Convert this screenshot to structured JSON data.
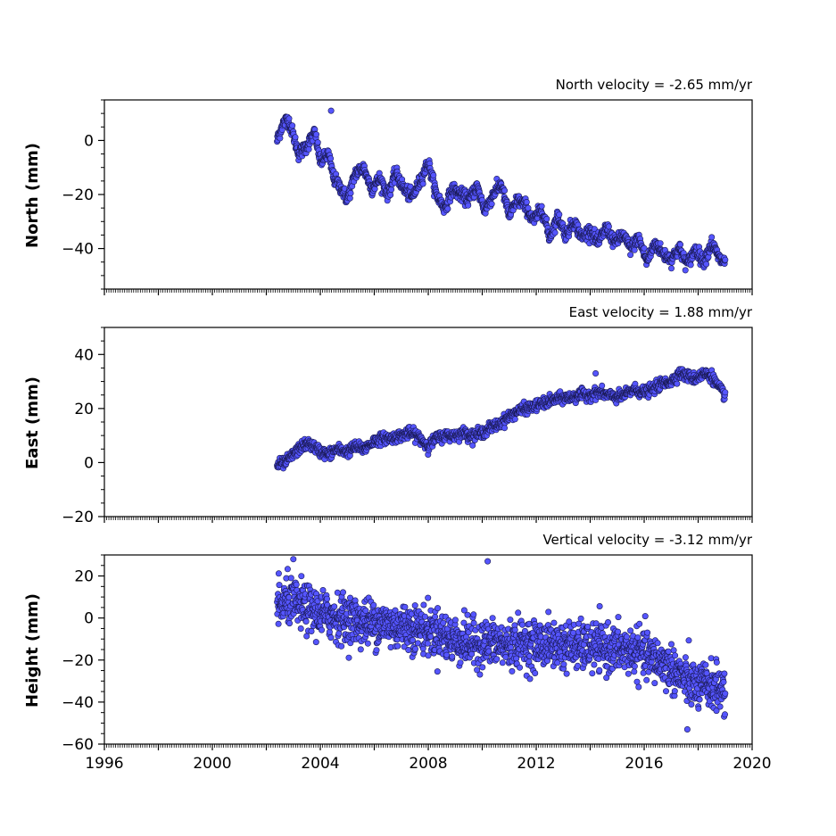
{
  "chart_data": [
    {
      "type": "scatter",
      "title": "North velocity = -2.65 mm/yr",
      "ylabel": "North (mm)",
      "ylim": [
        -55,
        15
      ],
      "yticks": [
        0,
        -20,
        -40
      ],
      "ytick_labels": [
        "0",
        "−20",
        "−40"
      ],
      "xlim": [
        1996,
        2020
      ],
      "series": [
        {
          "x": [
            2002.4,
            2002.6,
            2002.8,
            2003.0,
            2003.2,
            2003.5,
            2003.8,
            2004.0,
            2004.3,
            2004.5,
            2004.8,
            2005.0,
            2005.3,
            2005.6,
            2005.9,
            2006.2,
            2006.5,
            2006.8,
            2007.1,
            2007.4,
            2007.7,
            2008.0,
            2008.3,
            2008.6,
            2008.9,
            2009.2,
            2009.5,
            2009.8,
            2010.1,
            2010.4,
            2010.7,
            2011.0,
            2011.3,
            2011.6,
            2011.9,
            2012.2,
            2012.5,
            2012.8,
            2013.1,
            2013.4,
            2013.7,
            2014.0,
            2014.3,
            2014.6,
            2014.9,
            2015.2,
            2015.5,
            2015.8,
            2016.1,
            2016.4,
            2016.7,
            2017.0,
            2017.3,
            2017.6,
            2017.9,
            2018.2,
            2018.5,
            2018.8,
            2019.0
          ],
          "y": [
            0,
            6,
            8,
            2,
            -5,
            -2,
            3,
            -8,
            -5,
            -14,
            -18,
            -22,
            -12,
            -10,
            -18,
            -14,
            -20,
            -12,
            -18,
            -21,
            -15,
            -8,
            -20,
            -25,
            -18,
            -20,
            -22,
            -17,
            -26,
            -20,
            -16,
            -28,
            -22,
            -24,
            -30,
            -25,
            -36,
            -28,
            -35,
            -30,
            -36,
            -33,
            -38,
            -32,
            -38,
            -35,
            -40,
            -36,
            -45,
            -38,
            -42,
            -44,
            -40,
            -46,
            -40,
            -45,
            -38,
            -44,
            -45
          ]
        }
      ],
      "outliers": [
        {
          "x": 2004.4,
          "y": 11
        }
      ]
    },
    {
      "type": "scatter",
      "title": "East velocity = 1.88 mm/yr",
      "ylabel": "East (mm)",
      "ylim": [
        -20,
        50
      ],
      "yticks": [
        40,
        20,
        0,
        -20
      ],
      "ytick_labels": [
        "40",
        "20",
        "0",
        "−20"
      ],
      "xlim": [
        1996,
        2020
      ],
      "series": [
        {
          "x": [
            2002.4,
            2002.7,
            2003.0,
            2003.3,
            2003.6,
            2004.0,
            2004.3,
            2004.6,
            2005.0,
            2005.3,
            2005.6,
            2006.0,
            2006.3,
            2006.6,
            2007.0,
            2007.3,
            2007.6,
            2008.0,
            2008.3,
            2008.6,
            2009.0,
            2009.3,
            2009.6,
            2010.0,
            2010.3,
            2010.6,
            2011.0,
            2011.3,
            2011.6,
            2012.0,
            2012.3,
            2012.6,
            2013.0,
            2013.3,
            2013.6,
            2014.0,
            2014.3,
            2014.6,
            2015.0,
            2015.3,
            2015.6,
            2016.0,
            2016.3,
            2016.6,
            2017.0,
            2017.3,
            2017.6,
            2017.9,
            2018.2,
            2018.5,
            2018.8,
            2019.0
          ],
          "y": [
            -1,
            0,
            3,
            6,
            7,
            4,
            3,
            5,
            4,
            6,
            5,
            8,
            9,
            9,
            10,
            11,
            10,
            6,
            9,
            10,
            10,
            11,
            10,
            11,
            13,
            14,
            17,
            19,
            20,
            21,
            22,
            23,
            24,
            24,
            25,
            25,
            26,
            25,
            24,
            25,
            27,
            26,
            27,
            29,
            30,
            33,
            32,
            31,
            33,
            32,
            27,
            25
          ]
        }
      ],
      "outliers": [
        {
          "x": 2014.2,
          "y": 33
        }
      ]
    },
    {
      "type": "scatter",
      "title": "Vertical velocity = -3.12 mm/yr",
      "ylabel": "Height (mm)",
      "ylim": [
        -60,
        30
      ],
      "yticks": [
        20,
        0,
        -20,
        -40,
        -60
      ],
      "ytick_labels": [
        "20",
        "0",
        "−20",
        "−40",
        "−60"
      ],
      "xlim": [
        1996,
        2020
      ],
      "xticks": [
        1996,
        2000,
        2004,
        2008,
        2012,
        2016,
        2020
      ],
      "xtick_labels": [
        "1996",
        "2000",
        "2004",
        "2008",
        "2012",
        "2016",
        "2020"
      ],
      "series": [
        {
          "x": [
            2002.4,
            2002.8,
            2003.2,
            2003.6,
            2004.0,
            2004.4,
            2004.8,
            2005.2,
            2005.6,
            2006.0,
            2006.4,
            2006.8,
            2007.2,
            2007.6,
            2008.0,
            2008.4,
            2008.8,
            2009.2,
            2009.6,
            2010.0,
            2010.4,
            2010.8,
            2011.2,
            2011.6,
            2012.0,
            2012.4,
            2012.8,
            2013.2,
            2013.6,
            2014.0,
            2014.4,
            2014.8,
            2015.2,
            2015.6,
            2016.0,
            2016.4,
            2016.8,
            2017.2,
            2017.6,
            2018.0,
            2018.4,
            2018.8,
            2019.0
          ],
          "y": [
            5,
            8,
            6,
            4,
            2,
            1,
            0,
            -1,
            -2,
            -2,
            -3,
            -4,
            -4,
            -5,
            -6,
            -7,
            -10,
            -11,
            -12,
            -12,
            -12,
            -13,
            -12,
            -12,
            -13,
            -12,
            -13,
            -13,
            -14,
            -14,
            -14,
            -15,
            -15,
            -16,
            -17,
            -20,
            -22,
            -26,
            -30,
            -33,
            -32,
            -33,
            -35
          ]
        }
      ],
      "outliers": [
        {
          "x": 2003.0,
          "y": 28
        },
        {
          "x": 2010.2,
          "y": 27
        },
        {
          "x": 2017.6,
          "y": -53
        }
      ]
    }
  ],
  "style": {
    "marker_fill": "#5555ff",
    "marker_edge": "#1a1a55",
    "axis_color": "#000000",
    "background": "#ffffff"
  }
}
